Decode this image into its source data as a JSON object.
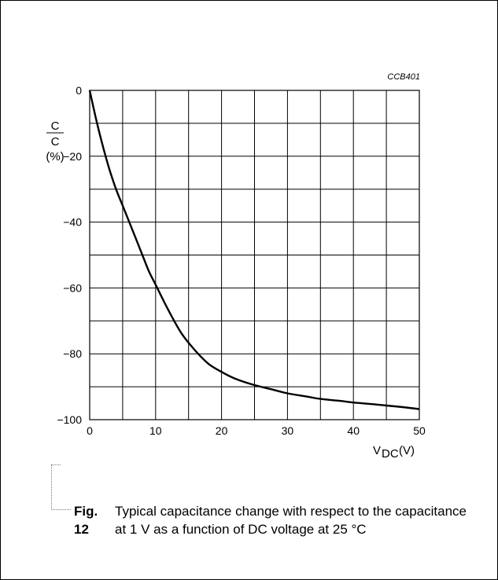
{
  "chart_data": {
    "type": "line",
    "figure_id": "CCB401",
    "ylabel": {
      "numerator": "C",
      "denominator": "C",
      "unit": "(%)"
    },
    "xlabel": {
      "symbol": "V",
      "subscript": "DC",
      "unit": "(V)"
    },
    "xlim": [
      0,
      50
    ],
    "ylim": [
      -100,
      0
    ],
    "x_ticks": [
      0,
      10,
      20,
      30,
      40,
      50
    ],
    "y_ticks": [
      0,
      -20,
      -40,
      -60,
      -80,
      -100
    ],
    "x_grid_step": 5,
    "y_grid_step": 10,
    "grid": true,
    "series": [
      {
        "x": [
          0,
          1,
          2,
          3,
          4,
          5,
          6,
          7,
          8,
          9,
          10,
          12,
          14,
          16,
          18,
          20,
          22,
          25,
          28,
          30,
          33,
          35,
          38,
          40,
          43,
          45,
          48,
          50
        ],
        "y": [
          0,
          -9,
          -17,
          -24,
          -30,
          -35,
          -40,
          -45,
          -50,
          -55,
          -59,
          -67,
          -74,
          -79,
          -83,
          -85.5,
          -87.5,
          -89.5,
          -91,
          -92,
          -93,
          -93.7,
          -94.3,
          -94.8,
          -95.3,
          -95.7,
          -96.3,
          -96.8
        ]
      }
    ]
  },
  "caption": {
    "label": "Fig. 12",
    "text": "Typical capacitance change with respect to the capacitance at 1 V as a function of DC voltage at 25 °C"
  },
  "colors": {
    "ink": "#000000",
    "border": "#000000",
    "background": "#ffffff"
  }
}
